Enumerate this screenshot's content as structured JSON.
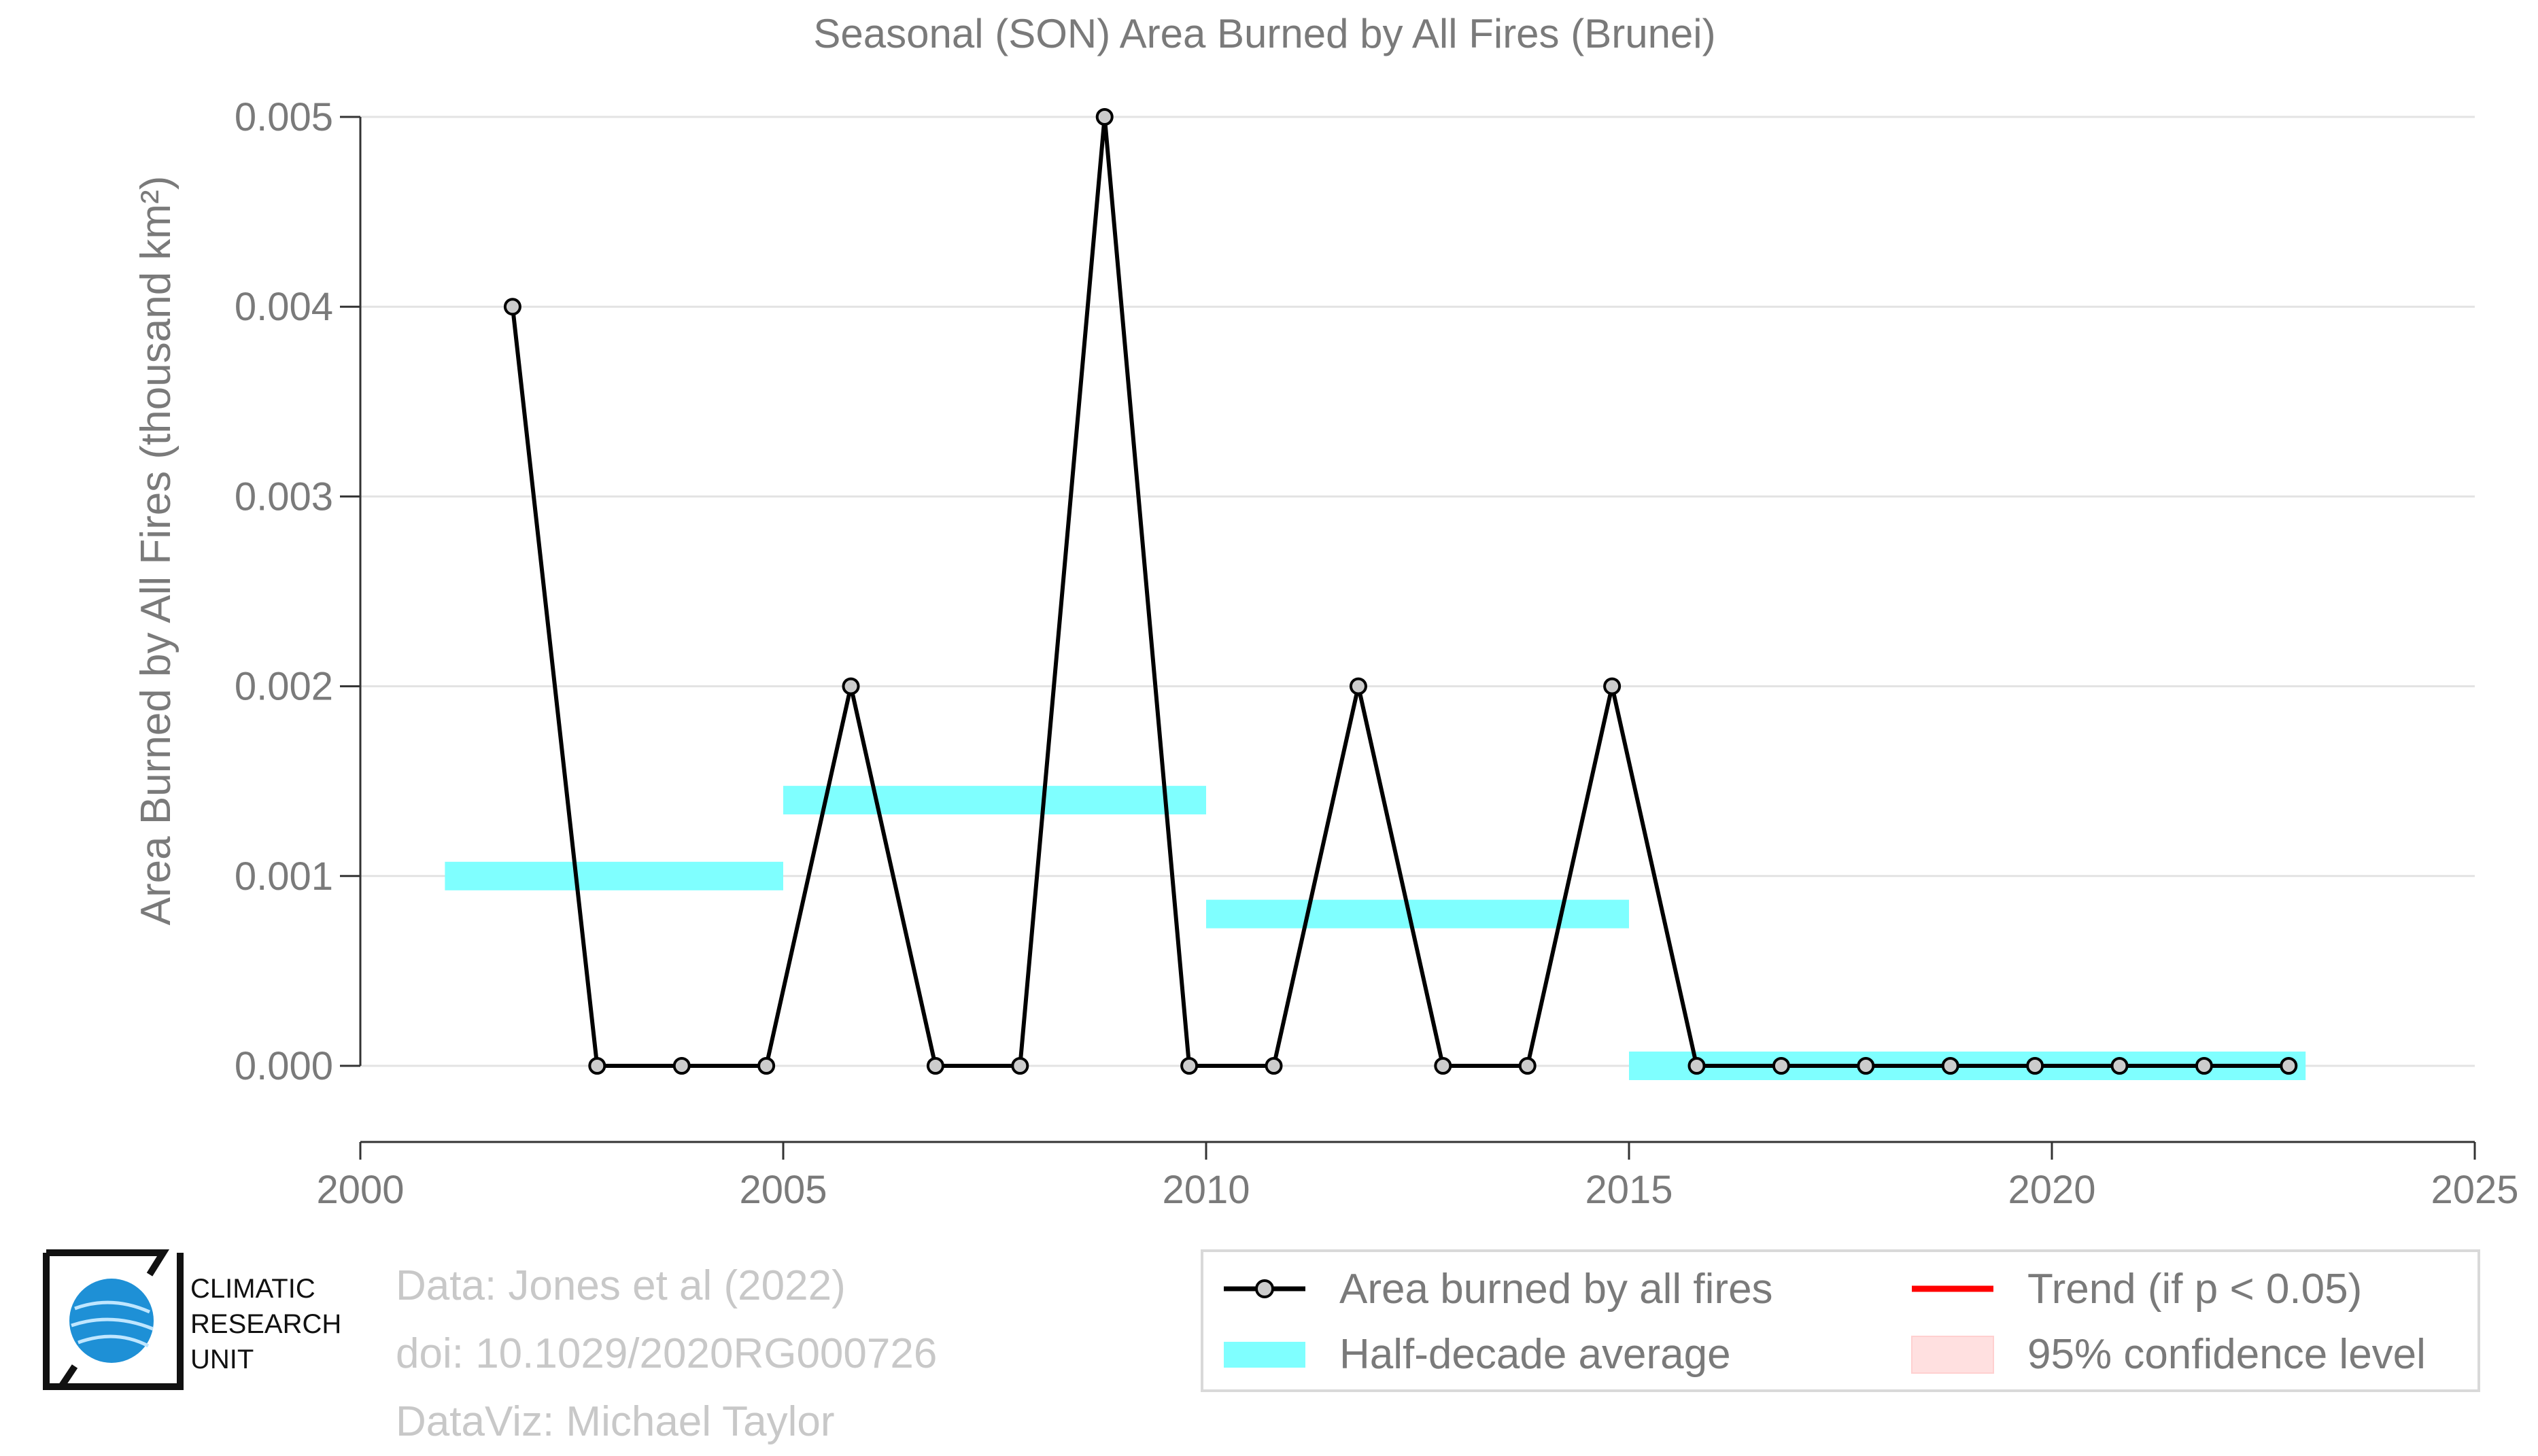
{
  "chart_data": {
    "type": "line",
    "title": "Seasonal (SON) Area Burned by All Fires (Brunei)",
    "ylabel": "Area Burned by All Fires (thousand km²)",
    "xlabel": "",
    "xlim": [
      2000,
      2025
    ],
    "ylim": [
      -0.0004,
      0.005
    ],
    "x_ticks": [
      "2000",
      "2005",
      "2010",
      "2015",
      "2020",
      "2025"
    ],
    "y_ticks": [
      "0.000",
      "0.001",
      "0.002",
      "0.003",
      "0.004",
      "0.005"
    ],
    "grid": true,
    "series": [
      {
        "name": "Area burned by all fires",
        "color": "#000000",
        "x": [
          2001.8,
          2002.8,
          2003.8,
          2004.8,
          2005.8,
          2006.8,
          2007.8,
          2008.8,
          2009.8,
          2010.8,
          2011.8,
          2012.8,
          2013.8,
          2014.8,
          2015.8,
          2016.8,
          2017.8,
          2018.8,
          2019.8,
          2020.8,
          2021.8,
          2022.8
        ],
        "values": [
          0.004,
          0,
          0,
          0,
          0.002,
          0,
          0,
          0.005,
          0,
          0,
          0.002,
          0,
          0,
          0.002,
          0,
          0,
          0,
          0,
          0,
          0,
          0,
          0
        ]
      },
      {
        "name": "Half-decade average",
        "color": "#7fffff",
        "segments": [
          {
            "x0": 2001,
            "x1": 2005,
            "value": 0.001
          },
          {
            "x0": 2005,
            "x1": 2010,
            "value": 0.0014
          },
          {
            "x0": 2010,
            "x1": 2015,
            "value": 0.0008
          },
          {
            "x0": 2015,
            "x1": 2023,
            "value": 0.0
          }
        ]
      }
    ],
    "legend": [
      {
        "label": "Area burned by all fires",
        "key": "line-point",
        "color": "#000000"
      },
      {
        "label": "Trend (if p < 0.05)",
        "key": "line",
        "color": "#ff0000"
      },
      {
        "label": "Half-decade average",
        "key": "band",
        "color": "#7fffff"
      },
      {
        "label": "95% confidence level",
        "key": "fill",
        "color": "#ffe0e0"
      }
    ],
    "legend_position": "bottom-right"
  },
  "credits": {
    "line1": "Data: Jones et al (2022)",
    "line2": "doi: 10.1029/2020RG000726",
    "line3": "DataViz: Michael Taylor"
  },
  "logo": {
    "line1": "CLIMATIC",
    "line2": "RESEARCH",
    "line3": "UNIT",
    "icon": "globe-icon"
  }
}
